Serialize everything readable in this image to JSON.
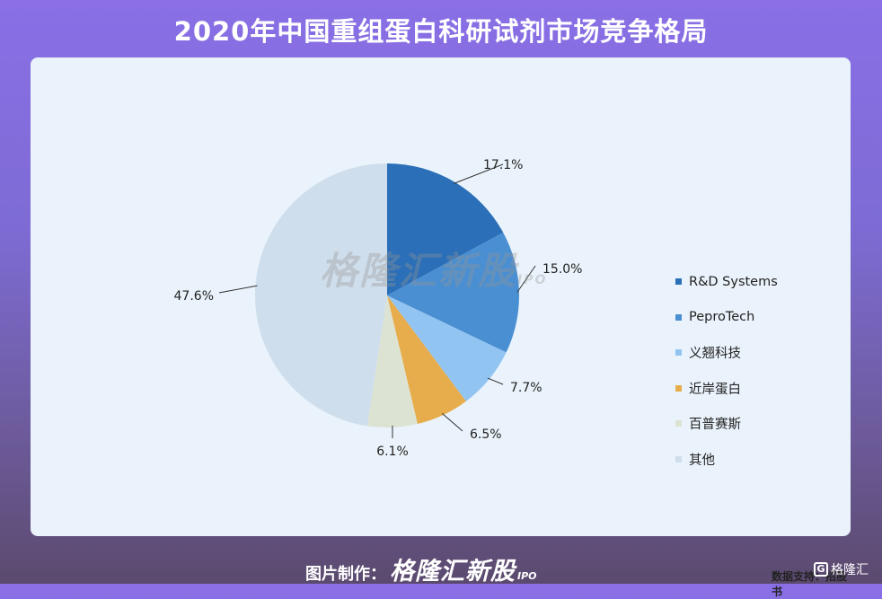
{
  "header": {
    "title": "2020年中国重组蛋白科研试剂市场竞争格局"
  },
  "chart_data": {
    "type": "pie",
    "categories": [
      "R&D Systems",
      "PeproTech",
      "义翘科技",
      "近岸蛋白",
      "百普赛斯",
      "其他"
    ],
    "values": [
      17.1,
      15.0,
      7.7,
      6.5,
      6.1,
      47.6
    ],
    "labels": [
      "17.1%",
      "15.0%",
      "7.7%",
      "6.5%",
      "6.1%",
      "47.6%"
    ],
    "colors": [
      "#2a6fb7",
      "#4a8fd2",
      "#92c4f2",
      "#e7ad4c",
      "#dde3d3",
      "#cfdeec"
    ],
    "legend_position": "right"
  },
  "watermark": {
    "text": "格隆汇新股",
    "sub": "IPO"
  },
  "source": {
    "text": "数据支持：招股书"
  },
  "footer": {
    "prefix": "图片制作：",
    "brand": "格隆汇新股",
    "brand_sub": "IPO"
  },
  "corner_logo": {
    "icon": "G",
    "text": "格隆汇"
  }
}
